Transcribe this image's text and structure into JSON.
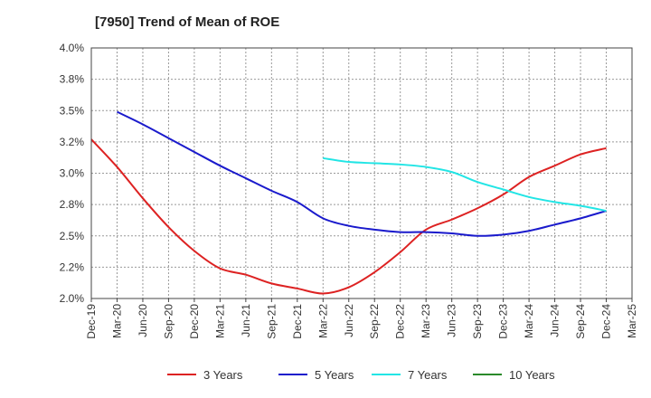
{
  "chart_data": {
    "type": "line",
    "title": "[7950]  Trend of Mean of ROE",
    "xlabel": "",
    "ylabel": "",
    "categories": [
      "Dec-19",
      "Mar-20",
      "Jun-20",
      "Sep-20",
      "Dec-20",
      "Mar-21",
      "Jun-21",
      "Sep-21",
      "Dec-21",
      "Mar-22",
      "Jun-22",
      "Sep-22",
      "Dec-22",
      "Mar-23",
      "Jun-23",
      "Sep-23",
      "Dec-23",
      "Mar-24",
      "Jun-24",
      "Sep-24",
      "Dec-24",
      "Mar-25"
    ],
    "y_ticks": [
      "4.0%",
      "3.8%",
      "3.5%",
      "3.2%",
      "3.0%",
      "2.8%",
      "2.5%",
      "2.2%",
      "2.0%"
    ],
    "ylim": [
      2.0,
      4.0
    ],
    "grid": true,
    "legend_position": "bottom",
    "series": [
      {
        "name": "3 Years",
        "color": "#dd2222",
        "values": [
          3.27,
          3.05,
          2.8,
          2.57,
          2.38,
          2.24,
          2.19,
          2.12,
          2.08,
          2.04,
          2.09,
          2.21,
          2.37,
          2.55,
          2.63,
          2.72,
          2.83,
          2.97,
          3.06,
          3.15,
          3.2,
          null
        ]
      },
      {
        "name": "5 Years",
        "color": "#1a1acc",
        "values": [
          null,
          3.49,
          3.39,
          3.28,
          3.17,
          3.06,
          2.96,
          2.86,
          2.77,
          2.64,
          2.58,
          2.55,
          2.53,
          2.53,
          2.52,
          2.5,
          2.51,
          2.54,
          2.59,
          2.64,
          2.7,
          null
        ]
      },
      {
        "name": "7 Years",
        "color": "#22e5e5",
        "values": [
          null,
          null,
          null,
          null,
          null,
          null,
          null,
          null,
          null,
          3.12,
          3.09,
          3.08,
          3.07,
          3.05,
          3.01,
          2.93,
          2.87,
          2.81,
          2.77,
          2.74,
          2.7,
          null
        ]
      },
      {
        "name": "10 Years",
        "color": "#2a8a2a",
        "values": [
          null,
          null,
          null,
          null,
          null,
          null,
          null,
          null,
          null,
          null,
          null,
          null,
          null,
          null,
          null,
          null,
          null,
          null,
          null,
          null,
          null,
          null
        ]
      }
    ]
  }
}
